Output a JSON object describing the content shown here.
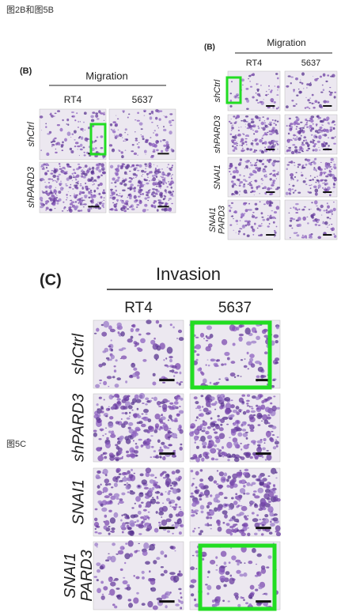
{
  "header": {
    "title": "图2B和图5B"
  },
  "side_label": "图5C",
  "panels": [
    {
      "label": "(B)",
      "heading": "Migration",
      "columns": [
        "RT4",
        "5637"
      ],
      "rows": [
        [
          "shCtrl"
        ],
        [
          "shPARD3"
        ]
      ]
    },
    {
      "label": "(B)",
      "heading": "Migration",
      "columns": [
        "RT4",
        "5637"
      ],
      "rows": [
        [
          "shCtrl"
        ],
        [
          "shPARD3"
        ],
        [
          "SNAI1"
        ],
        [
          "SNAI1",
          "PARD3"
        ]
      ]
    },
    {
      "label": "(C)",
      "heading": "Invasion",
      "columns": [
        "RT4",
        "5637"
      ],
      "rows": [
        [
          "shCtrl"
        ],
        [
          "shPARD3"
        ],
        [
          "SNAI1"
        ],
        [
          "SNAI1",
          "PARD3"
        ]
      ]
    }
  ]
}
